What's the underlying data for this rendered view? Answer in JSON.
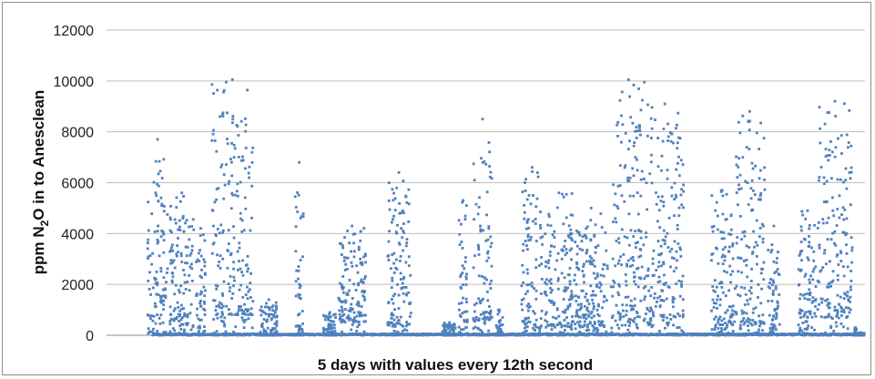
{
  "chart_data": {
    "type": "scatter",
    "title": "",
    "xlabel": "5 days with values every 12th second",
    "ylabel_parts": {
      "pre": "ppm N",
      "sub": "2",
      "post": "O in to Anesclean"
    },
    "ylim": [
      0,
      12000
    ],
    "yticks": [
      "0",
      "2000",
      "4000",
      "6000",
      "8000",
      "10000",
      "12000"
    ],
    "grid": "horizontal",
    "legend": "none",
    "marker_color": "#4F81BD",
    "xlim": [
      0,
      36000
    ],
    "sessions": [
      {
        "start": 1950,
        "end": 2900,
        "base": 500,
        "peak": 7700
      },
      {
        "start": 3000,
        "end": 4150,
        "base": 400,
        "peak": 5600
      },
      {
        "start": 4250,
        "end": 4700,
        "base": 300,
        "peak": 4200
      },
      {
        "start": 5000,
        "end": 6950,
        "base": 800,
        "peak": 10050
      },
      {
        "start": 7300,
        "end": 8100,
        "base": 0,
        "peak": 1400
      },
      {
        "start": 8950,
        "end": 9350,
        "base": 200,
        "peak": 6800
      },
      {
        "start": 10300,
        "end": 10900,
        "base": 0,
        "peak": 900
      },
      {
        "start": 11000,
        "end": 12300,
        "base": 500,
        "peak": 4300
      },
      {
        "start": 13300,
        "end": 14450,
        "base": 400,
        "peak": 6400
      },
      {
        "start": 15950,
        "end": 16600,
        "base": 0,
        "peak": 500
      },
      {
        "start": 16700,
        "end": 17150,
        "base": 200,
        "peak": 5300
      },
      {
        "start": 17400,
        "end": 18300,
        "base": 600,
        "peak": 8500
      },
      {
        "start": 18500,
        "end": 18800,
        "base": 0,
        "peak": 1000
      },
      {
        "start": 19700,
        "end": 20700,
        "base": 300,
        "peak": 6600
      },
      {
        "start": 20800,
        "end": 22150,
        "base": 400,
        "peak": 5600
      },
      {
        "start": 22200,
        "end": 23800,
        "base": 300,
        "peak": 5000
      },
      {
        "start": 23950,
        "end": 25600,
        "base": 600,
        "peak": 10050
      },
      {
        "start": 25600,
        "end": 27400,
        "base": 700,
        "peak": 9100
      },
      {
        "start": 28700,
        "end": 29750,
        "base": 400,
        "peak": 5700
      },
      {
        "start": 29800,
        "end": 31250,
        "base": 500,
        "peak": 8800
      },
      {
        "start": 31400,
        "end": 31950,
        "base": 200,
        "peak": 4300
      },
      {
        "start": 32850,
        "end": 33700,
        "base": 500,
        "peak": 4900
      },
      {
        "start": 33750,
        "end": 35400,
        "base": 700,
        "peak": 9200
      },
      {
        "start": 35500,
        "end": 35600,
        "base": 0,
        "peak": 300
      }
    ],
    "sessions_late": [
      {
        "start": 35650,
        "end": 36000,
        "base": 0,
        "peak": 100
      }
    ]
  }
}
